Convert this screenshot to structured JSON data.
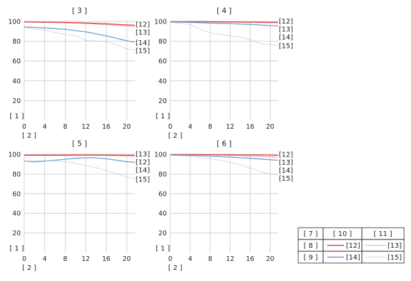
{
  "colors": {
    "s12": "#e04040",
    "s13": "#e04040",
    "s14": "#6f9fd0",
    "s15": "#9fb9e0"
  },
  "legend": {
    "header": [
      "[ 7 ]",
      "[ 10 ]",
      "[ 11 ]"
    ],
    "rows": [
      {
        "label": "[ 8 ]",
        "solid": "[12]",
        "dotted": "[13]"
      },
      {
        "label": "[ 9 ]",
        "solid": "[14]",
        "dotted": "[15]"
      }
    ]
  },
  "chart_data": [
    {
      "type": "line",
      "title": "[ 3 ]",
      "ylabel": "[ 1 ]",
      "xlabel": "[ 2 ]",
      "xlim": [
        0,
        21.6
      ],
      "ylim": [
        0,
        100
      ],
      "xticks": [
        0,
        4,
        8,
        12,
        16,
        20
      ],
      "yticks": [
        20,
        40,
        60,
        80,
        100
      ],
      "series": [
        {
          "name": "[12]",
          "style": "solid",
          "x": [
            0,
            4,
            8,
            12,
            16,
            20,
            21.6
          ],
          "y": [
            99.5,
            99.3,
            99.0,
            98.5,
            97.6,
            96.5,
            96.2
          ]
        },
        {
          "name": "[13]",
          "style": "dotted",
          "x": [
            0,
            4,
            8,
            12,
            16,
            20,
            21.6
          ],
          "y": [
            99.4,
            99.0,
            98.5,
            97.9,
            96.8,
            95.4,
            95.0
          ]
        },
        {
          "name": "[14]",
          "style": "solid",
          "x": [
            0,
            4,
            8,
            12,
            16,
            20,
            21.6
          ],
          "y": [
            94.5,
            93.5,
            92.0,
            89.5,
            85.5,
            80.5,
            79.0
          ]
        },
        {
          "name": "[15]",
          "style": "dotted",
          "x": [
            0,
            4,
            8,
            10,
            12,
            14,
            16,
            18,
            20,
            21.6
          ],
          "y": [
            94.0,
            91.0,
            87.0,
            85.5,
            81.0,
            80.0,
            79.5,
            76.5,
            72.5,
            71.0
          ]
        }
      ]
    },
    {
      "type": "line",
      "title": "[ 4 ]",
      "ylabel": "[ 1 ]",
      "xlabel": "[ 2 ]",
      "xlim": [
        0,
        21.6
      ],
      "ylim": [
        0,
        100
      ],
      "xticks": [
        0,
        4,
        8,
        12,
        16,
        20
      ],
      "yticks": [
        20,
        40,
        60,
        80,
        100
      ],
      "series": [
        {
          "name": "[12]",
          "style": "solid",
          "x": [
            0,
            4,
            8,
            12,
            16,
            20,
            21.6
          ],
          "y": [
            99.8,
            99.8,
            99.7,
            99.6,
            99.4,
            99.2,
            99.2
          ]
        },
        {
          "name": "[13]",
          "style": "dotted",
          "x": [
            0,
            4,
            8,
            12,
            16,
            20,
            21.6
          ],
          "y": [
            99.7,
            99.6,
            99.4,
            99.2,
            98.9,
            98.6,
            98.5
          ]
        },
        {
          "name": "[14]",
          "style": "solid",
          "x": [
            0,
            4,
            8,
            12,
            16,
            20,
            21.6
          ],
          "y": [
            99.5,
            99.0,
            98.4,
            97.8,
            97.0,
            95.8,
            95.5
          ]
        },
        {
          "name": "[15]",
          "style": "dotted",
          "x": [
            0,
            4,
            6,
            8,
            10,
            12,
            14,
            16,
            18,
            20,
            21.6
          ],
          "y": [
            99.0,
            97.0,
            92.0,
            88.5,
            87.0,
            85.5,
            84.0,
            81.5,
            77.5,
            76.5,
            76.0
          ]
        }
      ]
    },
    {
      "type": "line",
      "title": "[ 5 ]",
      "ylabel": "[ 1 ]",
      "xlabel": "[ 2 ]",
      "xlim": [
        0,
        21.6
      ],
      "ylim": [
        0,
        100
      ],
      "xticks": [
        0,
        4,
        8,
        12,
        16,
        20
      ],
      "yticks": [
        20,
        40,
        60,
        80,
        100
      ],
      "series": [
        {
          "name": "[12]",
          "style": "solid",
          "x": [
            0,
            4,
            8,
            12,
            16,
            20,
            21.6
          ],
          "y": [
            99.0,
            99.0,
            99.0,
            99.2,
            99.0,
            98.8,
            98.7
          ]
        },
        {
          "name": "[13]",
          "style": "dotted",
          "x": [
            0,
            4,
            8,
            12,
            16,
            20,
            21.6
          ],
          "y": [
            99.5,
            99.6,
            99.7,
            99.8,
            99.7,
            99.5,
            99.4
          ]
        },
        {
          "name": "[14]",
          "style": "solid",
          "x": [
            0,
            2,
            4,
            6,
            8,
            10,
            12,
            14,
            16,
            18,
            20,
            21.6
          ],
          "y": [
            93.0,
            92.5,
            93.0,
            94.0,
            95.0,
            96.0,
            96.5,
            96.5,
            95.5,
            94.0,
            92.5,
            92.0
          ]
        },
        {
          "name": "[15]",
          "style": "dotted",
          "x": [
            0,
            4,
            6,
            8,
            10,
            12,
            14,
            16,
            18,
            20,
            21.6
          ],
          "y": [
            93.0,
            93.5,
            93.5,
            92.5,
            91.0,
            88.5,
            86.5,
            83.5,
            80.5,
            77.0,
            75.0
          ]
        }
      ]
    },
    {
      "type": "line",
      "title": "[ 6 ]",
      "ylabel": "[ 1 ]",
      "xlabel": "[ 2 ]",
      "xlim": [
        0,
        21.6
      ],
      "ylim": [
        0,
        100
      ],
      "xticks": [
        0,
        4,
        8,
        12,
        16,
        20
      ],
      "yticks": [
        20,
        40,
        60,
        80,
        100
      ],
      "series": [
        {
          "name": "[12]",
          "style": "solid",
          "x": [
            0,
            4,
            8,
            12,
            16,
            20,
            21.6
          ],
          "y": [
            99.8,
            99.8,
            99.7,
            99.6,
            99.4,
            99.2,
            99.1
          ]
        },
        {
          "name": "[13]",
          "style": "dotted",
          "x": [
            0,
            4,
            8,
            12,
            16,
            20,
            21.6
          ],
          "y": [
            99.6,
            99.5,
            99.3,
            98.9,
            98.3,
            97.5,
            97.2
          ]
        },
        {
          "name": "[14]",
          "style": "solid",
          "x": [
            0,
            4,
            8,
            12,
            16,
            20,
            21.6
          ],
          "y": [
            99.4,
            99.0,
            98.2,
            97.2,
            96.0,
            94.5,
            94.0
          ]
        },
        {
          "name": "[15]",
          "style": "dotted",
          "x": [
            0,
            4,
            8,
            10,
            12,
            14,
            16,
            18,
            20,
            21.6
          ],
          "y": [
            99.0,
            98.0,
            95.5,
            94.0,
            92.0,
            89.5,
            86.0,
            82.5,
            80.0,
            79.5
          ]
        }
      ]
    }
  ]
}
